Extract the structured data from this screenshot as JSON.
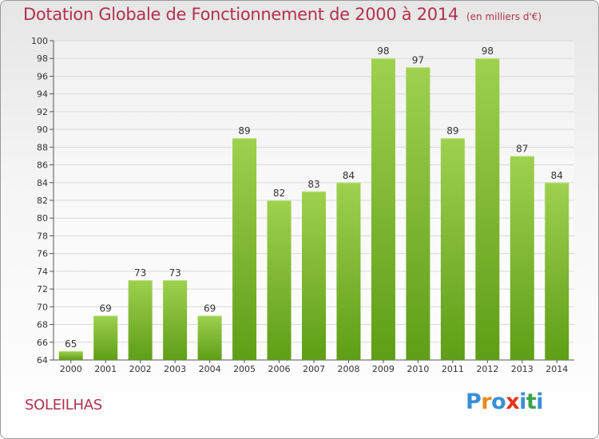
{
  "title": "Dotation Globale de Fonctionnement de 2000 à 2014",
  "unit_note": "(en milliers d'€)",
  "commune": "SOLEILHAS",
  "logo": {
    "letters": [
      "P",
      "r",
      "o",
      "x",
      "i",
      "t",
      "i"
    ],
    "colors": [
      "#3a8fd6",
      "#e58a1f",
      "#3a8fd6",
      "#e6331f",
      "#3a8fd6",
      "#3aa34a",
      "#3a8fd6"
    ]
  },
  "colors": {
    "title": "#b3304e",
    "bar_top": "#9ed14e",
    "bar_bottom": "#5f9e16",
    "grid": "#d9d9d9"
  },
  "chart_data": {
    "type": "bar",
    "title": "Dotation Globale de Fonctionnement de 2000 à 2014",
    "subtitle": "(en milliers d'€)",
    "xlabel": "",
    "ylabel": "",
    "categories": [
      "2000",
      "2001",
      "2002",
      "2003",
      "2004",
      "2005",
      "2006",
      "2007",
      "2008",
      "2009",
      "2010",
      "2011",
      "2012",
      "2013",
      "2014"
    ],
    "values": [
      65,
      69,
      73,
      73,
      69,
      89,
      82,
      83,
      84,
      98,
      97,
      89,
      98,
      87,
      84
    ],
    "ylim": [
      64,
      100
    ],
    "yticks": [
      64,
      66,
      68,
      70,
      72,
      74,
      76,
      78,
      80,
      82,
      84,
      86,
      88,
      90,
      92,
      94,
      96,
      98,
      100
    ],
    "grid": true,
    "data_labels": true
  }
}
